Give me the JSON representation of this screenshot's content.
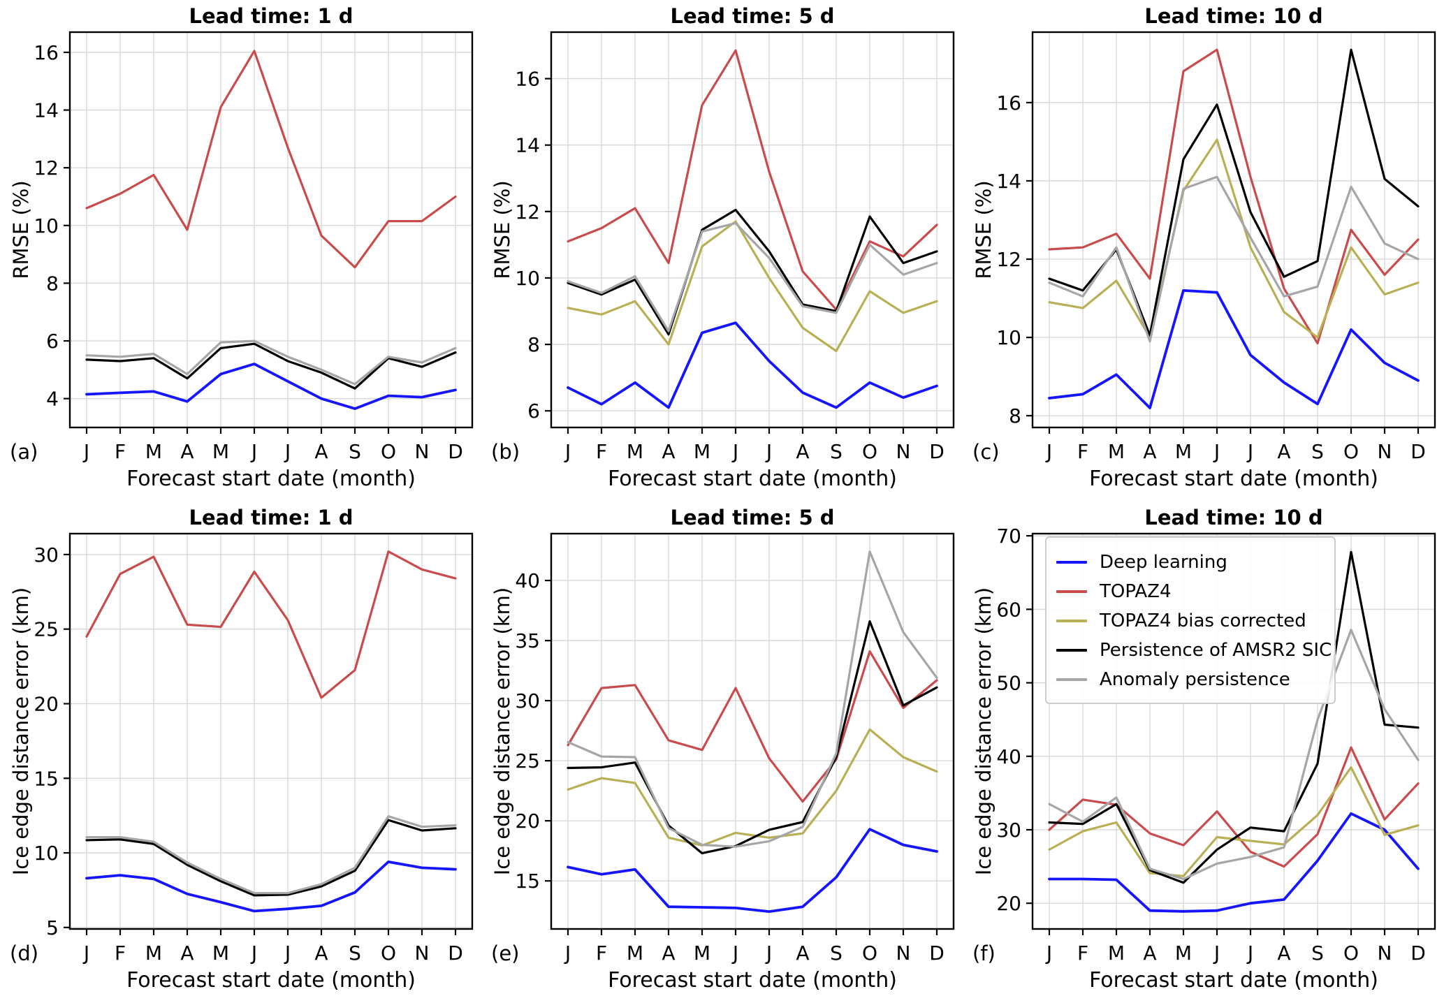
{
  "colors": {
    "deep_learning": "#1515ff",
    "topaz4": "#c94b4b",
    "topaz4_bias_corrected": "#b9af55",
    "persistence_amsr2": "#000000",
    "anomaly_persistence": "#a6a6a6",
    "grid": "#d8d8d8",
    "axis": "#000000"
  },
  "legend": {
    "entries": [
      {
        "label": "Deep learning",
        "color": "#1515ff"
      },
      {
        "label": "TOPAZ4",
        "color": "#c94b4b"
      },
      {
        "label": "TOPAZ4 bias corrected",
        "color": "#b9af55"
      },
      {
        "label": "Persistence of AMSR2 SIC",
        "color": "#000000"
      },
      {
        "label": "Anomaly persistence",
        "color": "#a6a6a6"
      }
    ]
  },
  "chart_data": [
    {
      "type": "line",
      "panel_label": "(a)",
      "title": "Lead time: 1 d",
      "ylabel": "RMSE (%)",
      "xlabel": "Forecast start date (month)",
      "categories": [
        "J",
        "F",
        "M",
        "A",
        "M",
        "J",
        "J",
        "A",
        "S",
        "O",
        "N",
        "D"
      ],
      "ylim": [
        3.0,
        16.7
      ],
      "yticks": [
        4,
        6,
        8,
        10,
        12,
        14,
        16
      ],
      "grid": true,
      "legend_position": null,
      "series": [
        {
          "name": "Deep learning",
          "color": "#1515ff",
          "values": [
            4.15,
            4.2,
            4.25,
            3.9,
            4.85,
            5.2,
            4.6,
            4.0,
            3.65,
            4.1,
            4.05,
            4.3
          ]
        },
        {
          "name": "TOPAZ4",
          "color": "#c94b4b",
          "values": [
            10.6,
            11.1,
            11.75,
            9.85,
            14.1,
            16.05,
            12.7,
            9.65,
            8.55,
            10.15,
            10.15,
            11.0
          ]
        },
        {
          "name": "Persistence of AMSR2 SIC",
          "color": "#000000",
          "values": [
            5.35,
            5.3,
            5.4,
            4.7,
            5.75,
            5.9,
            5.3,
            4.9,
            4.35,
            5.4,
            5.1,
            5.6
          ]
        },
        {
          "name": "Anomaly persistence",
          "color": "#a6a6a6",
          "values": [
            5.5,
            5.45,
            5.55,
            4.85,
            5.95,
            6.0,
            5.45,
            5.0,
            4.5,
            5.45,
            5.25,
            5.75
          ]
        }
      ]
    },
    {
      "type": "line",
      "panel_label": "(b)",
      "title": "Lead time: 5 d",
      "ylabel": "RMSE (%)",
      "xlabel": "Forecast start date (month)",
      "categories": [
        "J",
        "F",
        "M",
        "A",
        "M",
        "J",
        "J",
        "A",
        "S",
        "O",
        "N",
        "D"
      ],
      "ylim": [
        5.5,
        17.4
      ],
      "yticks": [
        6,
        8,
        10,
        12,
        14,
        16
      ],
      "grid": true,
      "legend_position": null,
      "series": [
        {
          "name": "Deep learning",
          "color": "#1515ff",
          "values": [
            6.7,
            6.2,
            6.85,
            6.1,
            8.35,
            8.65,
            7.5,
            6.55,
            6.1,
            6.85,
            6.4,
            6.75
          ]
        },
        {
          "name": "TOPAZ4",
          "color": "#c94b4b",
          "values": [
            11.1,
            11.5,
            12.1,
            10.45,
            15.2,
            16.85,
            13.2,
            10.2,
            9.05,
            11.1,
            10.65,
            11.6
          ]
        },
        {
          "name": "TOPAZ4 bias corrected",
          "color": "#b9af55",
          "values": [
            9.1,
            8.9,
            9.3,
            8.0,
            10.95,
            11.7,
            10.0,
            8.5,
            7.8,
            9.6,
            8.95,
            9.3
          ]
        },
        {
          "name": "Persistence of AMSR2 SIC",
          "color": "#000000",
          "values": [
            9.85,
            9.5,
            9.95,
            8.3,
            11.45,
            12.05,
            10.8,
            9.2,
            9.0,
            11.85,
            10.45,
            10.8
          ]
        },
        {
          "name": "Anomaly persistence",
          "color": "#a6a6a6",
          "values": [
            9.9,
            9.55,
            10.05,
            8.4,
            11.4,
            11.65,
            10.6,
            9.15,
            8.95,
            11.0,
            10.1,
            10.45
          ]
        }
      ]
    },
    {
      "type": "line",
      "panel_label": "(c)",
      "title": "Lead time: 10 d",
      "ylabel": "RMSE (%)",
      "xlabel": "Forecast start date (month)",
      "categories": [
        "J",
        "F",
        "M",
        "A",
        "M",
        "J",
        "J",
        "A",
        "S",
        "O",
        "N",
        "D"
      ],
      "ylim": [
        7.7,
        17.8
      ],
      "yticks": [
        8,
        10,
        12,
        14,
        16
      ],
      "grid": true,
      "legend_position": null,
      "series": [
        {
          "name": "Deep learning",
          "color": "#1515ff",
          "values": [
            8.45,
            8.55,
            9.05,
            8.2,
            11.2,
            11.15,
            9.55,
            8.85,
            8.3,
            10.2,
            9.35,
            8.9
          ]
        },
        {
          "name": "TOPAZ4",
          "color": "#c94b4b",
          "values": [
            12.25,
            12.3,
            12.65,
            11.5,
            16.8,
            17.35,
            14.1,
            11.25,
            9.85,
            12.75,
            11.6,
            12.5
          ]
        },
        {
          "name": "TOPAZ4 bias corrected",
          "color": "#b9af55",
          "values": [
            10.9,
            10.75,
            11.45,
            10.0,
            13.75,
            15.05,
            12.3,
            10.65,
            10.0,
            12.3,
            11.1,
            11.4
          ]
        },
        {
          "name": "Persistence of AMSR2 SIC",
          "color": "#000000",
          "values": [
            11.5,
            11.2,
            12.25,
            10.05,
            14.55,
            15.95,
            13.2,
            11.55,
            11.95,
            17.35,
            14.05,
            13.35
          ]
        },
        {
          "name": "Anomaly persistence",
          "color": "#a6a6a6",
          "values": [
            11.4,
            11.05,
            12.3,
            9.9,
            13.8,
            14.1,
            12.55,
            11.05,
            11.3,
            13.85,
            12.4,
            12.0
          ]
        }
      ]
    },
    {
      "type": "line",
      "panel_label": "(d)",
      "title": "Lead time: 1 d",
      "ylabel": "Ice edge distance error (km)",
      "xlabel": "Forecast start date (month)",
      "categories": [
        "J",
        "F",
        "M",
        "A",
        "M",
        "J",
        "J",
        "A",
        "S",
        "O",
        "N",
        "D"
      ],
      "ylim": [
        4.9,
        31.4
      ],
      "yticks": [
        5,
        10,
        15,
        20,
        25,
        30
      ],
      "grid": true,
      "legend_position": null,
      "series": [
        {
          "name": "Deep learning",
          "color": "#1515ff",
          "values": [
            8.3,
            8.5,
            8.25,
            7.25,
            6.7,
            6.1,
            6.25,
            6.45,
            7.35,
            9.4,
            9.0,
            8.9
          ]
        },
        {
          "name": "TOPAZ4",
          "color": "#c94b4b",
          "values": [
            24.5,
            28.7,
            29.85,
            25.3,
            25.15,
            28.85,
            25.6,
            20.4,
            22.25,
            30.2,
            29.0,
            28.4
          ]
        },
        {
          "name": "Persistence of AMSR2 SIC",
          "color": "#000000",
          "values": [
            10.85,
            10.9,
            10.6,
            9.2,
            8.1,
            7.15,
            7.2,
            7.75,
            8.8,
            12.2,
            11.5,
            11.65
          ]
        },
        {
          "name": "Anomaly persistence",
          "color": "#a6a6a6",
          "values": [
            11.05,
            11.05,
            10.75,
            9.35,
            8.25,
            7.3,
            7.3,
            7.9,
            9.0,
            12.45,
            11.75,
            11.85
          ]
        }
      ]
    },
    {
      "type": "line",
      "panel_label": "(e)",
      "title": "Lead time: 5 d",
      "ylabel": "Ice edge distance error (km)",
      "xlabel": "Forecast start date (month)",
      "categories": [
        "J",
        "F",
        "M",
        "A",
        "M",
        "J",
        "J",
        "A",
        "S",
        "O",
        "N",
        "D"
      ],
      "ylim": [
        11.0,
        43.9
      ],
      "yticks": [
        15,
        20,
        25,
        30,
        35,
        40
      ],
      "grid": true,
      "legend_position": null,
      "series": [
        {
          "name": "Deep learning",
          "color": "#1515ff",
          "values": [
            16.15,
            15.55,
            15.95,
            12.85,
            12.8,
            12.75,
            12.45,
            12.85,
            15.3,
            19.3,
            18.0,
            17.45
          ]
        },
        {
          "name": "TOPAZ4",
          "color": "#c94b4b",
          "values": [
            26.3,
            31.05,
            31.3,
            26.7,
            25.9,
            31.05,
            25.2,
            21.6,
            25.1,
            34.1,
            29.4,
            31.7
          ]
        },
        {
          "name": "TOPAZ4 bias corrected",
          "color": "#b9af55",
          "values": [
            22.6,
            23.55,
            23.15,
            18.6,
            17.95,
            19.0,
            18.6,
            18.95,
            22.5,
            27.6,
            25.3,
            24.1
          ]
        },
        {
          "name": "Persistence of AMSR2 SIC",
          "color": "#000000",
          "values": [
            24.4,
            24.45,
            24.85,
            19.6,
            17.3,
            17.9,
            19.25,
            19.9,
            25.3,
            36.6,
            29.6,
            31.1
          ]
        },
        {
          "name": "Anomaly persistence",
          "color": "#a6a6a6",
          "values": [
            26.55,
            25.35,
            25.3,
            19.4,
            18.0,
            17.85,
            18.3,
            19.5,
            25.6,
            42.4,
            35.7,
            31.9
          ]
        }
      ]
    },
    {
      "type": "line",
      "panel_label": "(f)",
      "title": "Lead time: 10 d",
      "ylabel": "Ice edge distance error (km)",
      "xlabel": "Forecast start date (month)",
      "categories": [
        "J",
        "F",
        "M",
        "A",
        "M",
        "J",
        "J",
        "A",
        "S",
        "O",
        "N",
        "D"
      ],
      "ylim": [
        16.5,
        70.3
      ],
      "yticks": [
        20,
        30,
        40,
        50,
        60,
        70
      ],
      "grid": true,
      "legend_position": "upper left",
      "series": [
        {
          "name": "Deep learning",
          "color": "#1515ff",
          "values": [
            23.3,
            23.3,
            23.2,
            19.0,
            18.9,
            19.0,
            20.0,
            20.5,
            25.8,
            32.2,
            30.0,
            24.7
          ]
        },
        {
          "name": "TOPAZ4",
          "color": "#c94b4b",
          "values": [
            30.0,
            34.1,
            33.4,
            29.5,
            27.9,
            32.5,
            27.0,
            25.0,
            29.4,
            41.2,
            31.4,
            36.3
          ]
        },
        {
          "name": "TOPAZ4 bias corrected",
          "color": "#b9af55",
          "values": [
            27.3,
            29.8,
            31.0,
            24.1,
            23.7,
            29.0,
            28.5,
            28.0,
            32.0,
            38.5,
            29.3,
            30.6
          ]
        },
        {
          "name": "Persistence of AMSR2 SIC",
          "color": "#000000",
          "values": [
            31.0,
            30.8,
            33.5,
            24.5,
            22.8,
            27.3,
            30.3,
            29.8,
            39.0,
            67.8,
            44.3,
            43.9
          ]
        },
        {
          "name": "Anomaly persistence",
          "color": "#a6a6a6",
          "values": [
            33.5,
            31.1,
            34.4,
            24.7,
            23.3,
            25.4,
            26.3,
            27.6,
            45.0,
            57.2,
            46.4,
            39.5
          ]
        }
      ]
    }
  ]
}
